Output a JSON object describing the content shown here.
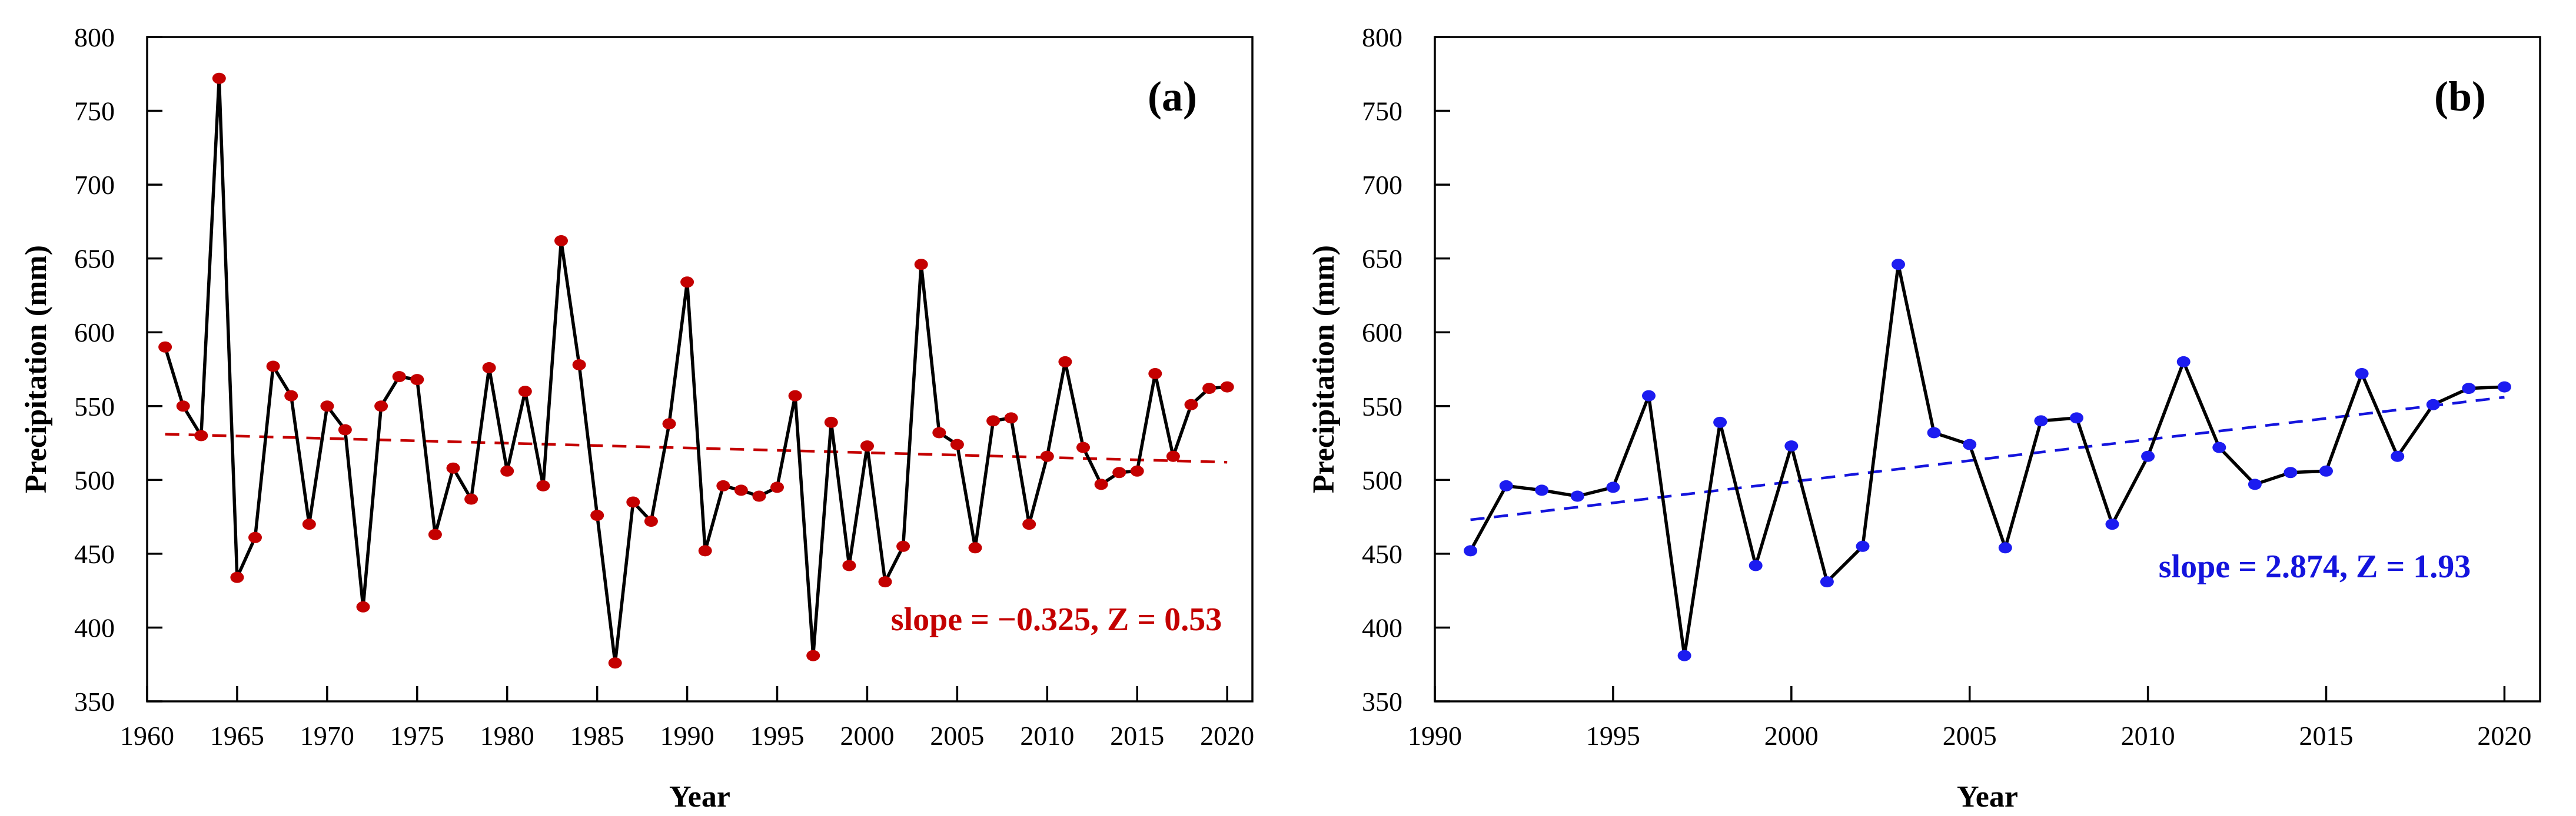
{
  "figure": {
    "background": "#ffffff",
    "xlabel": "Year",
    "ylabel": "Precipitation (mm)"
  },
  "chart_data": [
    {
      "type": "line",
      "panel_label": "(a)",
      "xlabel": "Year",
      "ylabel": "Precipitation (mm)",
      "xlim": [
        1960,
        2021.4
      ],
      "ylim": [
        350,
        800
      ],
      "xticks": [
        1960,
        1965,
        1970,
        1975,
        1980,
        1985,
        1990,
        1995,
        2000,
        2005,
        2010,
        2015,
        2020
      ],
      "yticks": [
        350,
        400,
        450,
        500,
        550,
        600,
        650,
        700,
        750,
        800
      ],
      "grid": false,
      "legend": "none",
      "line_color": "#000000",
      "marker": "circle",
      "marker_color": "#c40000",
      "x": [
        1961,
        1962,
        1963,
        1964,
        1965,
        1966,
        1967,
        1968,
        1969,
        1970,
        1971,
        1972,
        1973,
        1974,
        1975,
        1976,
        1977,
        1978,
        1979,
        1980,
        1981,
        1982,
        1983,
        1984,
        1985,
        1986,
        1987,
        1988,
        1989,
        1990,
        1991,
        1992,
        1993,
        1994,
        1995,
        1996,
        1997,
        1998,
        1999,
        2000,
        2001,
        2002,
        2003,
        2004,
        2005,
        2006,
        2007,
        2008,
        2009,
        2010,
        2011,
        2012,
        2013,
        2014,
        2015,
        2016,
        2017,
        2018,
        2019,
        2020
      ],
      "y": [
        590,
        550,
        530,
        772,
        434,
        461,
        577,
        557,
        470,
        550,
        534,
        414,
        550,
        570,
        568,
        463,
        508,
        487,
        576,
        506,
        560,
        496,
        662,
        578,
        476,
        376,
        485,
        472,
        538,
        634,
        452,
        496,
        493,
        489,
        495,
        557,
        381,
        539,
        442,
        523,
        431,
        455,
        646,
        532,
        524,
        454,
        540,
        542,
        470,
        516,
        580,
        522,
        497,
        505,
        506,
        572,
        516,
        551,
        562,
        563
      ],
      "trend": {
        "annotation": "slope = −0.325, Z = 0.53",
        "slope": -0.325,
        "z": 0.53,
        "color": "#c40000",
        "style": "dashed",
        "x_start": 1961,
        "y_start": 531,
        "x_end": 2020,
        "y_end": 512
      },
      "annotation_anchor": [
        1795,
        1072
      ],
      "panel_label_anchor": [
        1992,
        188
      ]
    },
    {
      "type": "line",
      "panel_label": "(b)",
      "xlabel": "Year",
      "ylabel": "Precipitation (mm)",
      "xlim": [
        1990,
        2021
      ],
      "ylim": [
        350,
        800
      ],
      "xticks": [
        1990,
        1995,
        2000,
        2005,
        2010,
        2015,
        2020
      ],
      "yticks": [
        350,
        400,
        450,
        500,
        550,
        600,
        650,
        700,
        750,
        800
      ],
      "grid": false,
      "legend": "none",
      "line_color": "#000000",
      "marker": "circle",
      "marker_color": "#1c1cf0",
      "x": [
        1991,
        1992,
        1993,
        1994,
        1995,
        1996,
        1997,
        1998,
        1999,
        2000,
        2001,
        2002,
        2003,
        2004,
        2005,
        2006,
        2007,
        2008,
        2009,
        2010,
        2011,
        2012,
        2013,
        2014,
        2015,
        2016,
        2017,
        2018,
        2019,
        2020
      ],
      "y": [
        452,
        496,
        493,
        489,
        495,
        557,
        381,
        539,
        442,
        523,
        431,
        455,
        646,
        532,
        524,
        454,
        540,
        542,
        470,
        516,
        580,
        522,
        497,
        505,
        506,
        572,
        516,
        551,
        562,
        563
      ],
      "trend": {
        "annotation": "slope = 2.874, Z = 1.93",
        "slope": 2.874,
        "z": 1.93,
        "color": "#1414dd",
        "style": "dashed",
        "x_start": 1991,
        "y_start": 473,
        "x_end": 2020,
        "y_end": 556
      },
      "annotation_anchor": [
        1745,
        982
      ],
      "panel_label_anchor": [
        1992,
        188
      ]
    }
  ]
}
